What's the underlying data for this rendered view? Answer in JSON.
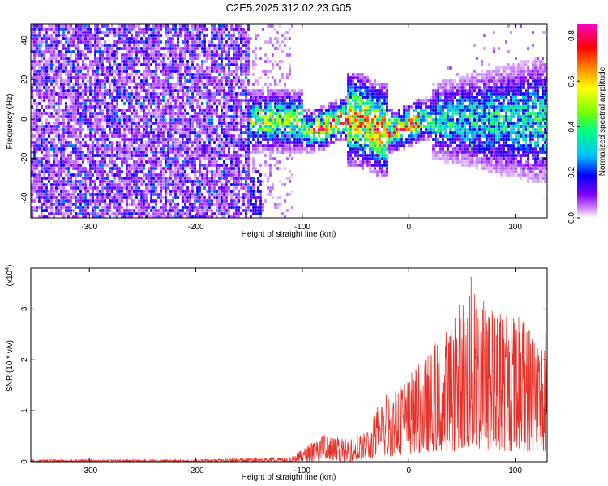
{
  "title": "C2E5.2025.312.02.23.G05",
  "chart_data": [
    {
      "type": "heatmap",
      "xlabel": "Height of straight line (km)",
      "ylabel": "Frequency (Hz)",
      "xlim": [
        -355,
        130
      ],
      "ylim": [
        -50,
        48
      ],
      "xticks": [
        "-300",
        "-200",
        "-100",
        "0",
        "100"
      ],
      "xtick_values": [
        -300,
        -200,
        -100,
        0,
        100
      ],
      "yticks": [
        "-40",
        "-20",
        "0",
        "20",
        "40"
      ],
      "ytick_values": [
        -40,
        -20,
        0,
        20,
        40
      ],
      "colorbar": {
        "label": "Normalized spectral amplitude",
        "range": [
          0,
          0.85
        ],
        "ticks": [
          "0.0",
          "0.2",
          "0.4",
          "0.6",
          "0.8"
        ],
        "tick_values": [
          0.0,
          0.2,
          0.4,
          0.6,
          0.8
        ],
        "colors": [
          "#ffffff",
          "#cc88ff",
          "#8000ff",
          "#0000ff",
          "#00c0ff",
          "#00ff80",
          "#80ff00",
          "#ffff00",
          "#ff8000",
          "#ff0000",
          "#ff00c0"
        ]
      },
      "regions": [
        {
          "x_range": [
            -355,
            -150
          ],
          "f_range": [
            -50,
            48
          ],
          "level": 0.15,
          "density": 0.8
        },
        {
          "x_range": [
            -150,
            130
          ],
          "f_center": 0,
          "f_halfwidth": 10,
          "level": 0.45
        },
        {
          "x_range": [
            -90,
            20
          ],
          "f_center": 0,
          "f_halfwidth": 5,
          "level": 0.8
        },
        {
          "x_range": [
            20,
            130
          ],
          "f_center": 0,
          "f_halfwidth": 20,
          "level": 0.3
        }
      ]
    },
    {
      "type": "line",
      "xlabel": "Height of straight line (km)",
      "ylabel": "SNR (10 * v/v)",
      "yscale_label": "(x10",
      "yscale_exponent": "4",
      "yscale_close": ")",
      "xlim": [
        -355,
        130
      ],
      "ylim": [
        0,
        3.8
      ],
      "xticks": [
        "-300",
        "-200",
        "-100",
        "0",
        "100"
      ],
      "xtick_values": [
        -300,
        -200,
        -100,
        0,
        100
      ],
      "yticks": [
        "0",
        "1",
        "2",
        "3"
      ],
      "ytick_values": [
        0,
        1,
        2,
        3
      ],
      "color": "#e8302a",
      "envelope": [
        {
          "x": -355,
          "lo": 0.0,
          "hi": 0.04
        },
        {
          "x": -200,
          "lo": 0.0,
          "hi": 0.04
        },
        {
          "x": -110,
          "lo": 0.0,
          "hi": 0.1
        },
        {
          "x": -80,
          "lo": 0.0,
          "hi": 0.55
        },
        {
          "x": -60,
          "lo": 0.0,
          "hi": 0.45
        },
        {
          "x": -40,
          "lo": 0.05,
          "hi": 0.6
        },
        {
          "x": -20,
          "lo": 0.1,
          "hi": 1.5
        },
        {
          "x": 0,
          "lo": 0.15,
          "hi": 1.7
        },
        {
          "x": 20,
          "lo": 0.2,
          "hi": 2.2
        },
        {
          "x": 40,
          "lo": 0.2,
          "hi": 2.8
        },
        {
          "x": 57,
          "lo": 0.25,
          "hi": 3.75
        },
        {
          "x": 80,
          "lo": 0.2,
          "hi": 3.0
        },
        {
          "x": 100,
          "lo": 0.2,
          "hi": 3.0
        },
        {
          "x": 130,
          "lo": 0.2,
          "hi": 2.6
        }
      ]
    }
  ]
}
